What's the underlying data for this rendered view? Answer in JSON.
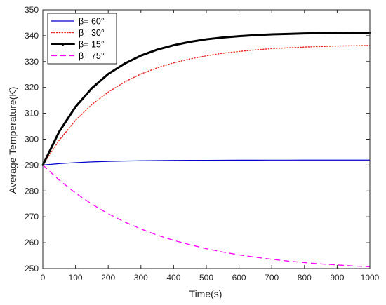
{
  "chart_data": {
    "type": "line",
    "title": "",
    "xlabel": "Time(s)",
    "ylabel": "Average Temperature(K)",
    "xlim": [
      0,
      1000
    ],
    "ylim": [
      250,
      350
    ],
    "x_ticks": [
      0,
      100,
      200,
      300,
      400,
      500,
      600,
      700,
      800,
      900,
      1000
    ],
    "y_ticks": [
      250,
      260,
      270,
      280,
      290,
      300,
      310,
      320,
      330,
      340,
      350
    ],
    "grid": false,
    "legend_position": "top-left",
    "x": [
      0,
      50,
      100,
      150,
      200,
      250,
      300,
      350,
      400,
      450,
      500,
      550,
      600,
      650,
      700,
      750,
      800,
      850,
      900,
      950,
      1000
    ],
    "series": [
      {
        "name": "β= 60°",
        "color": "#0000cc",
        "style": "solid",
        "values": [
          290.0,
          290.55,
          290.94,
          291.22,
          291.42,
          291.57,
          291.67,
          291.74,
          291.8,
          291.84,
          291.86,
          291.88,
          291.9,
          291.91,
          291.92,
          291.92,
          291.93,
          291.93,
          291.93,
          291.93,
          291.94
        ]
      },
      {
        "name": "β= 30°",
        "color": "#e8231a",
        "style": "dotted",
        "values": [
          290.0,
          299.6,
          307.3,
          313.4,
          318.2,
          322.1,
          325.2,
          327.6,
          329.5,
          331.0,
          332.2,
          333.2,
          333.9,
          334.5,
          335.0,
          335.3,
          335.6,
          335.8,
          336.0,
          336.1,
          336.2
        ]
      },
      {
        "name": "β= 15°",
        "color": "#000000",
        "style": "thick",
        "values": [
          290.0,
          302.9,
          312.5,
          319.7,
          325.2,
          329.2,
          332.3,
          334.6,
          336.3,
          337.6,
          338.6,
          339.3,
          339.8,
          340.2,
          340.5,
          340.7,
          340.9,
          341.0,
          341.1,
          341.2,
          341.2
        ]
      },
      {
        "name": "β= 75°",
        "color": "#ff00ff",
        "style": "dashed",
        "values": [
          290.0,
          284.2,
          279.2,
          274.9,
          271.2,
          268.0,
          265.3,
          262.9,
          260.9,
          259.2,
          257.7,
          256.4,
          255.3,
          254.4,
          253.6,
          252.9,
          252.3,
          251.8,
          251.4,
          251.0,
          250.7
        ]
      }
    ]
  }
}
